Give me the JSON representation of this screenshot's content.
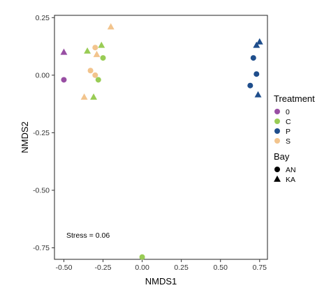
{
  "chart_data": {
    "type": "scatter",
    "xlabel": "NMDS1",
    "ylabel": "NMDS2",
    "xlim": [
      -0.56,
      0.8
    ],
    "ylim": [
      -0.8,
      0.26
    ],
    "x_ticks": [
      -0.5,
      -0.25,
      0.0,
      0.25,
      0.5,
      0.75
    ],
    "x_tick_labels": [
      "-0.50",
      "-0.25",
      "0.00",
      "0.25",
      "0.50",
      "0.75"
    ],
    "y_ticks": [
      0.25,
      0.0,
      -0.25,
      -0.5,
      -0.75
    ],
    "y_tick_labels": [
      "0.25",
      "0.00",
      "-0.25",
      "-0.50",
      "-0.75"
    ],
    "grid": false,
    "legend_position": "right",
    "annotation": "Stress = 0.06",
    "colors": {
      "0": "#984ea3",
      "C": "#99cc55",
      "P": "#1f4e8c",
      "S": "#f2c48d"
    },
    "legends": [
      {
        "title": "Treatment",
        "kind": "color",
        "entries": [
          {
            "label": "0",
            "color": "#984ea3"
          },
          {
            "label": "C",
            "color": "#99cc55"
          },
          {
            "label": "P",
            "color": "#1f4e8c"
          },
          {
            "label": "S",
            "color": "#f2c48d"
          }
        ]
      },
      {
        "title": "Bay",
        "kind": "shape",
        "entries": [
          {
            "label": "AN",
            "shape": "circle"
          },
          {
            "label": "KA",
            "shape": "triangle"
          }
        ]
      }
    ],
    "points": [
      {
        "x": -0.5,
        "y": 0.1,
        "treatment": "0",
        "bay": "KA"
      },
      {
        "x": -0.5,
        "y": -0.02,
        "treatment": "0",
        "bay": "AN"
      },
      {
        "x": -0.35,
        "y": 0.105,
        "treatment": "C",
        "bay": "KA"
      },
      {
        "x": -0.26,
        "y": 0.13,
        "treatment": "C",
        "bay": "KA"
      },
      {
        "x": -0.25,
        "y": 0.075,
        "treatment": "C",
        "bay": "AN"
      },
      {
        "x": -0.28,
        "y": -0.02,
        "treatment": "C",
        "bay": "AN"
      },
      {
        "x": -0.31,
        "y": -0.095,
        "treatment": "C",
        "bay": "KA"
      },
      {
        "x": 0.0,
        "y": -0.79,
        "treatment": "C",
        "bay": "AN"
      },
      {
        "x": -0.2,
        "y": 0.21,
        "treatment": "S",
        "bay": "KA"
      },
      {
        "x": -0.3,
        "y": 0.12,
        "treatment": "S",
        "bay": "AN"
      },
      {
        "x": -0.29,
        "y": 0.09,
        "treatment": "S",
        "bay": "KA"
      },
      {
        "x": -0.33,
        "y": 0.02,
        "treatment": "S",
        "bay": "AN"
      },
      {
        "x": -0.3,
        "y": 0.0,
        "treatment": "S",
        "bay": "AN"
      },
      {
        "x": -0.37,
        "y": -0.095,
        "treatment": "S",
        "bay": "KA"
      },
      {
        "x": 0.75,
        "y": 0.145,
        "treatment": "P",
        "bay": "KA"
      },
      {
        "x": 0.73,
        "y": 0.13,
        "treatment": "P",
        "bay": "KA"
      },
      {
        "x": 0.71,
        "y": 0.075,
        "treatment": "P",
        "bay": "AN"
      },
      {
        "x": 0.73,
        "y": 0.005,
        "treatment": "P",
        "bay": "AN"
      },
      {
        "x": 0.69,
        "y": -0.045,
        "treatment": "P",
        "bay": "AN"
      },
      {
        "x": 0.74,
        "y": -0.085,
        "treatment": "P",
        "bay": "KA"
      }
    ]
  }
}
